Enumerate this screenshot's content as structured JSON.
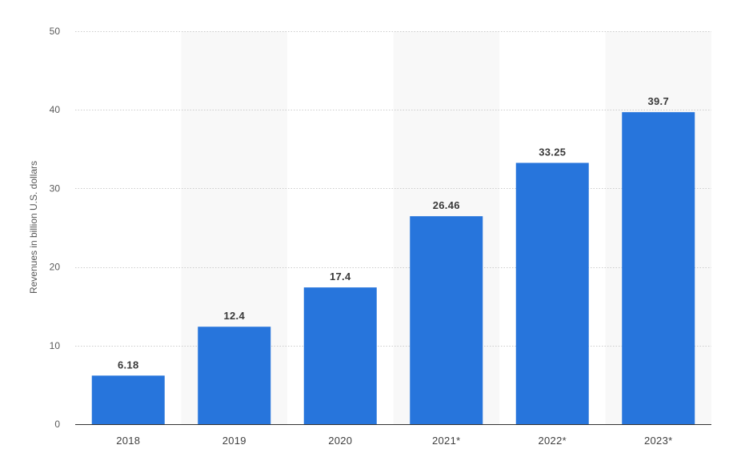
{
  "chart_data": {
    "type": "bar",
    "categories": [
      "2018",
      "2019",
      "2020",
      "2021*",
      "2022*",
      "2023*"
    ],
    "values": [
      6.18,
      12.4,
      17.4,
      26.46,
      33.25,
      39.7
    ],
    "value_labels": [
      "6.18",
      "12.4",
      "17.4",
      "26.46",
      "33.25",
      "39.7"
    ],
    "title": "",
    "xlabel": "",
    "ylabel": "Revenues in billion U.S. dollars",
    "ylim": [
      0,
      50
    ],
    "yticks": [
      0,
      10,
      20,
      30,
      40,
      50
    ],
    "grid": true,
    "bar_color": "#2775dc",
    "band_color": "#f8f8f8",
    "grid_color": "#cccccc"
  }
}
